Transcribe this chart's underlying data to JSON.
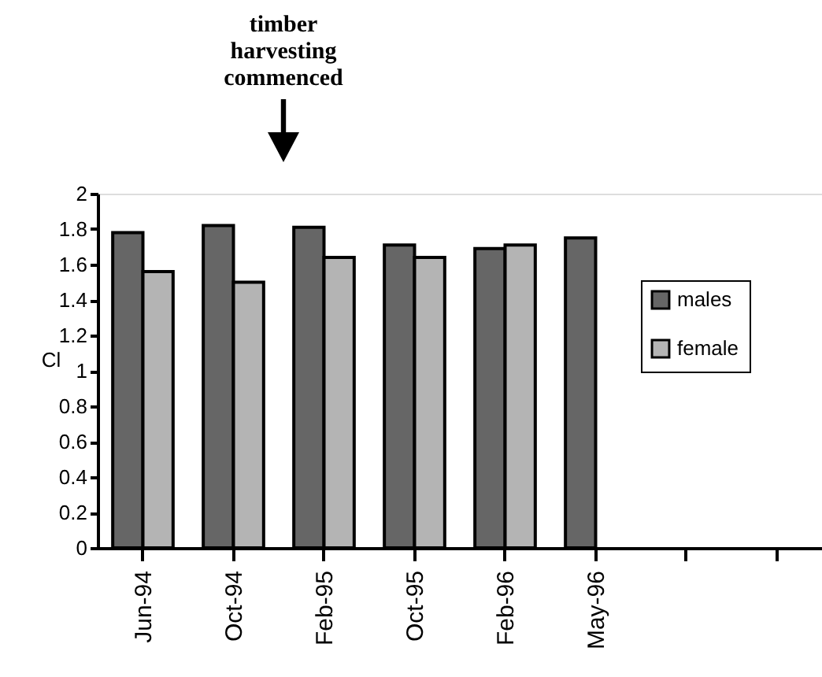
{
  "chart_data": {
    "type": "bar",
    "ylabel": "Cl",
    "categories": [
      "Jun-94",
      "Oct-94",
      "Feb-95",
      "Oct-95",
      "Feb-96",
      "May-96",
      null,
      null
    ],
    "series": [
      {
        "name": "males",
        "color": "#666666",
        "values": [
          1.78,
          1.82,
          1.81,
          1.71,
          1.69,
          1.75,
          null,
          null
        ]
      },
      {
        "name": "female",
        "color": "#b4b4b4",
        "values": [
          1.56,
          1.5,
          1.64,
          1.64,
          1.71,
          null,
          null,
          null
        ]
      }
    ],
    "ylim": [
      0,
      2
    ],
    "yticks": [
      0,
      0.2,
      0.4,
      0.6,
      0.8,
      1,
      1.2,
      1.4,
      1.6,
      1.8,
      2
    ],
    "grid": false,
    "legend": "right",
    "annotations": [
      "timber harvesting commenced"
    ]
  }
}
